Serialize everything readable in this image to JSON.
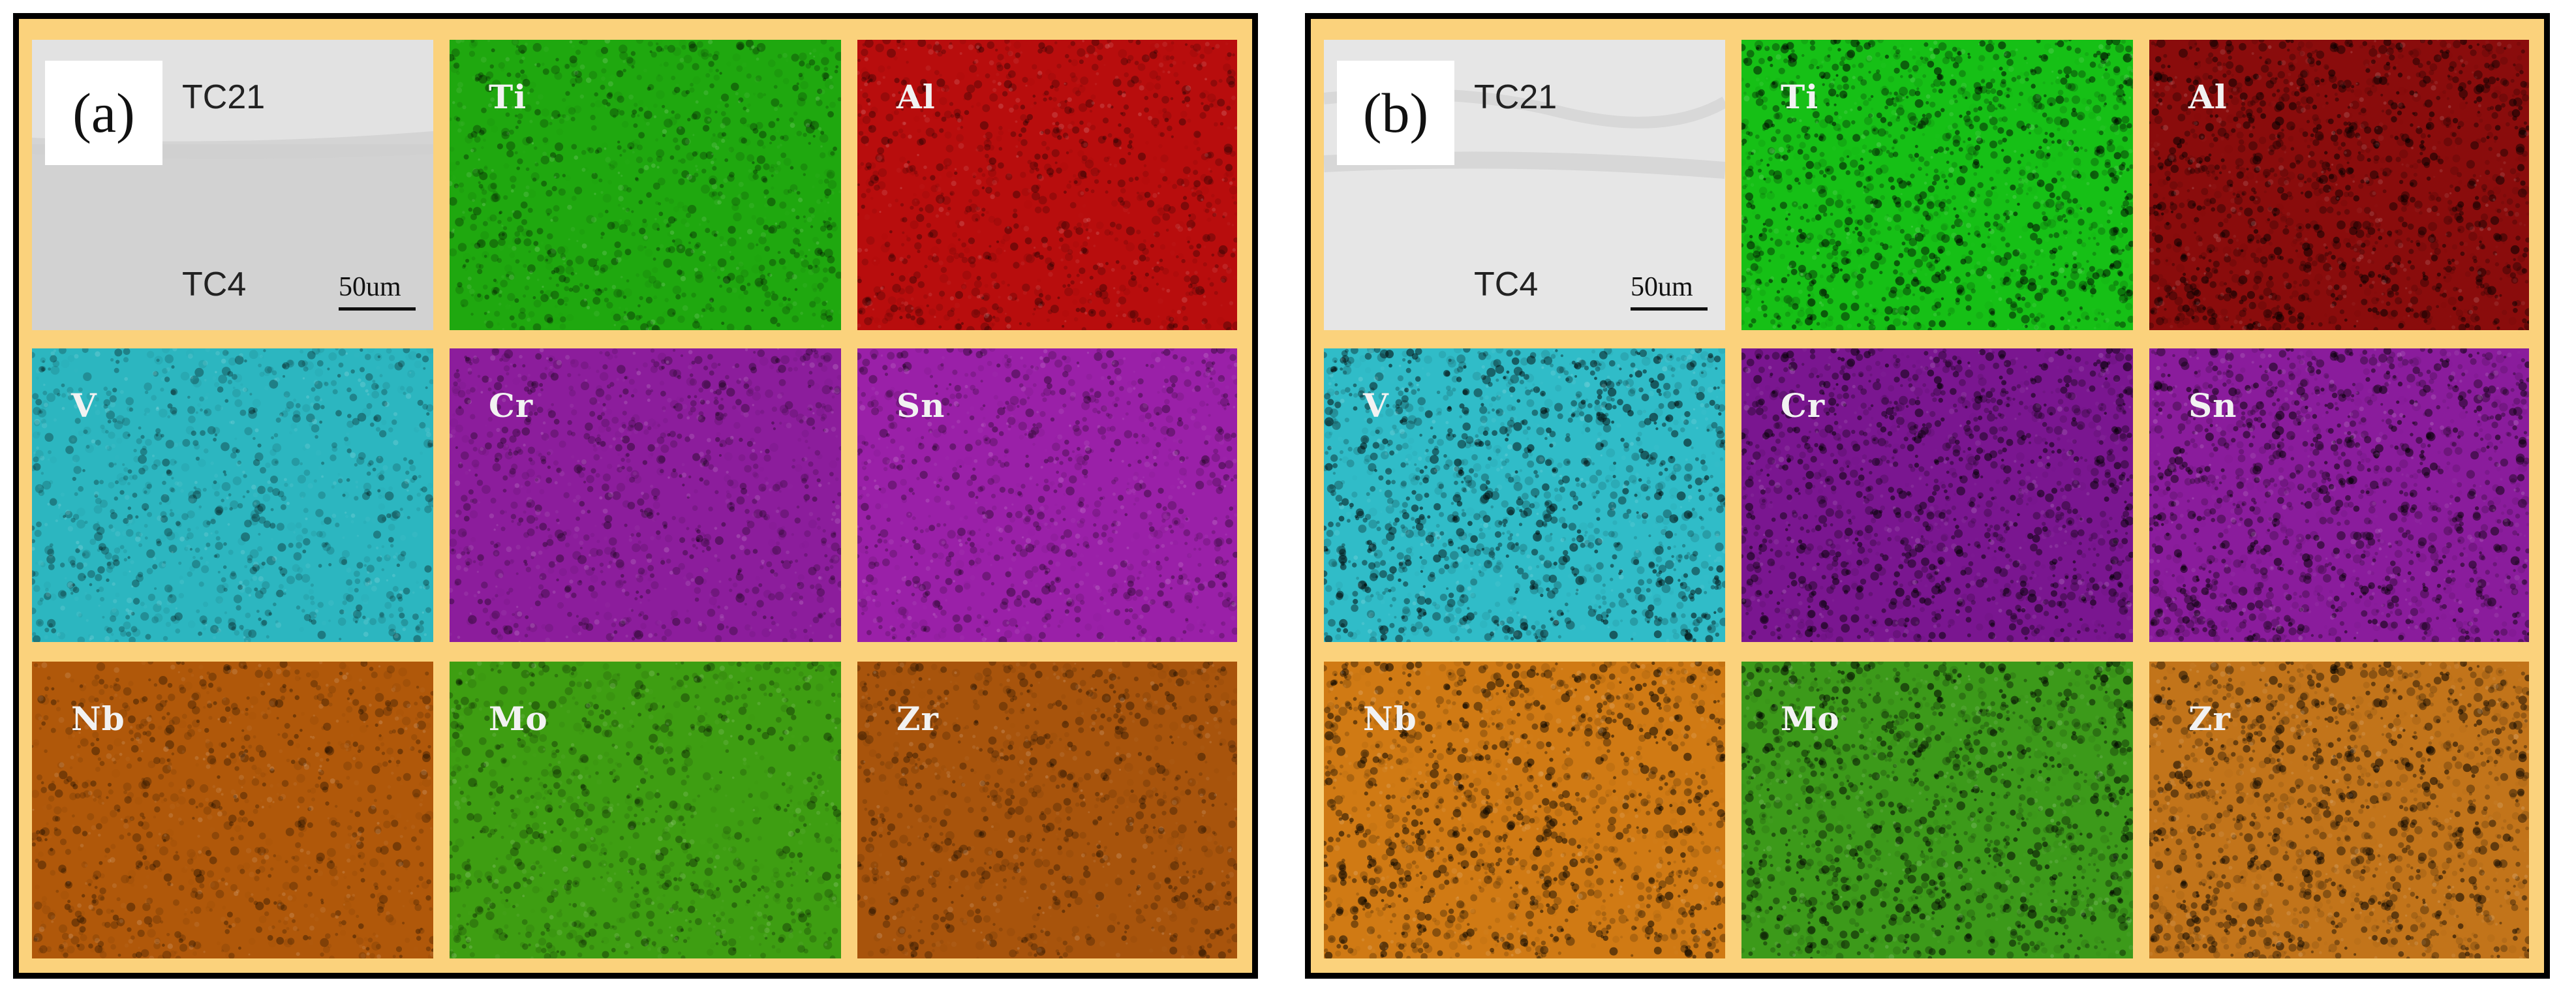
{
  "panels": [
    {
      "letter": "(a)",
      "sem": {
        "top_label": "TC21",
        "bottom_label": "TC4",
        "scale_bar": "50um"
      },
      "maps": [
        {
          "element": "Ti",
          "color": "#1fa80f"
        },
        {
          "element": "Al",
          "color": "#b80d0d"
        },
        {
          "element": "V",
          "color": "#2cb6c0"
        },
        {
          "element": "Cr",
          "color": "#8c1d9c"
        },
        {
          "element": "Sn",
          "color": "#9a20a8"
        },
        {
          "element": "Nb",
          "color": "#b0580a"
        },
        {
          "element": "Mo",
          "color": "#3e9e12"
        },
        {
          "element": "Zr",
          "color": "#a8540c"
        }
      ]
    },
    {
      "letter": "(b)",
      "sem": {
        "top_label": "TC21",
        "bottom_label": "TC4",
        "scale_bar": "50um"
      },
      "maps": [
        {
          "element": "Ti",
          "color": "#16c016"
        },
        {
          "element": "Al",
          "color": "#8a0c0c"
        },
        {
          "element": "V",
          "color": "#30bcc8"
        },
        {
          "element": "Cr",
          "color": "#7a1690"
        },
        {
          "element": "Sn",
          "color": "#8a1c9c"
        },
        {
          "element": "Nb",
          "color": "#d07a14"
        },
        {
          "element": "Mo",
          "color": "#3c9a1a"
        },
        {
          "element": "Zr",
          "color": "#c2741a"
        }
      ]
    }
  ]
}
